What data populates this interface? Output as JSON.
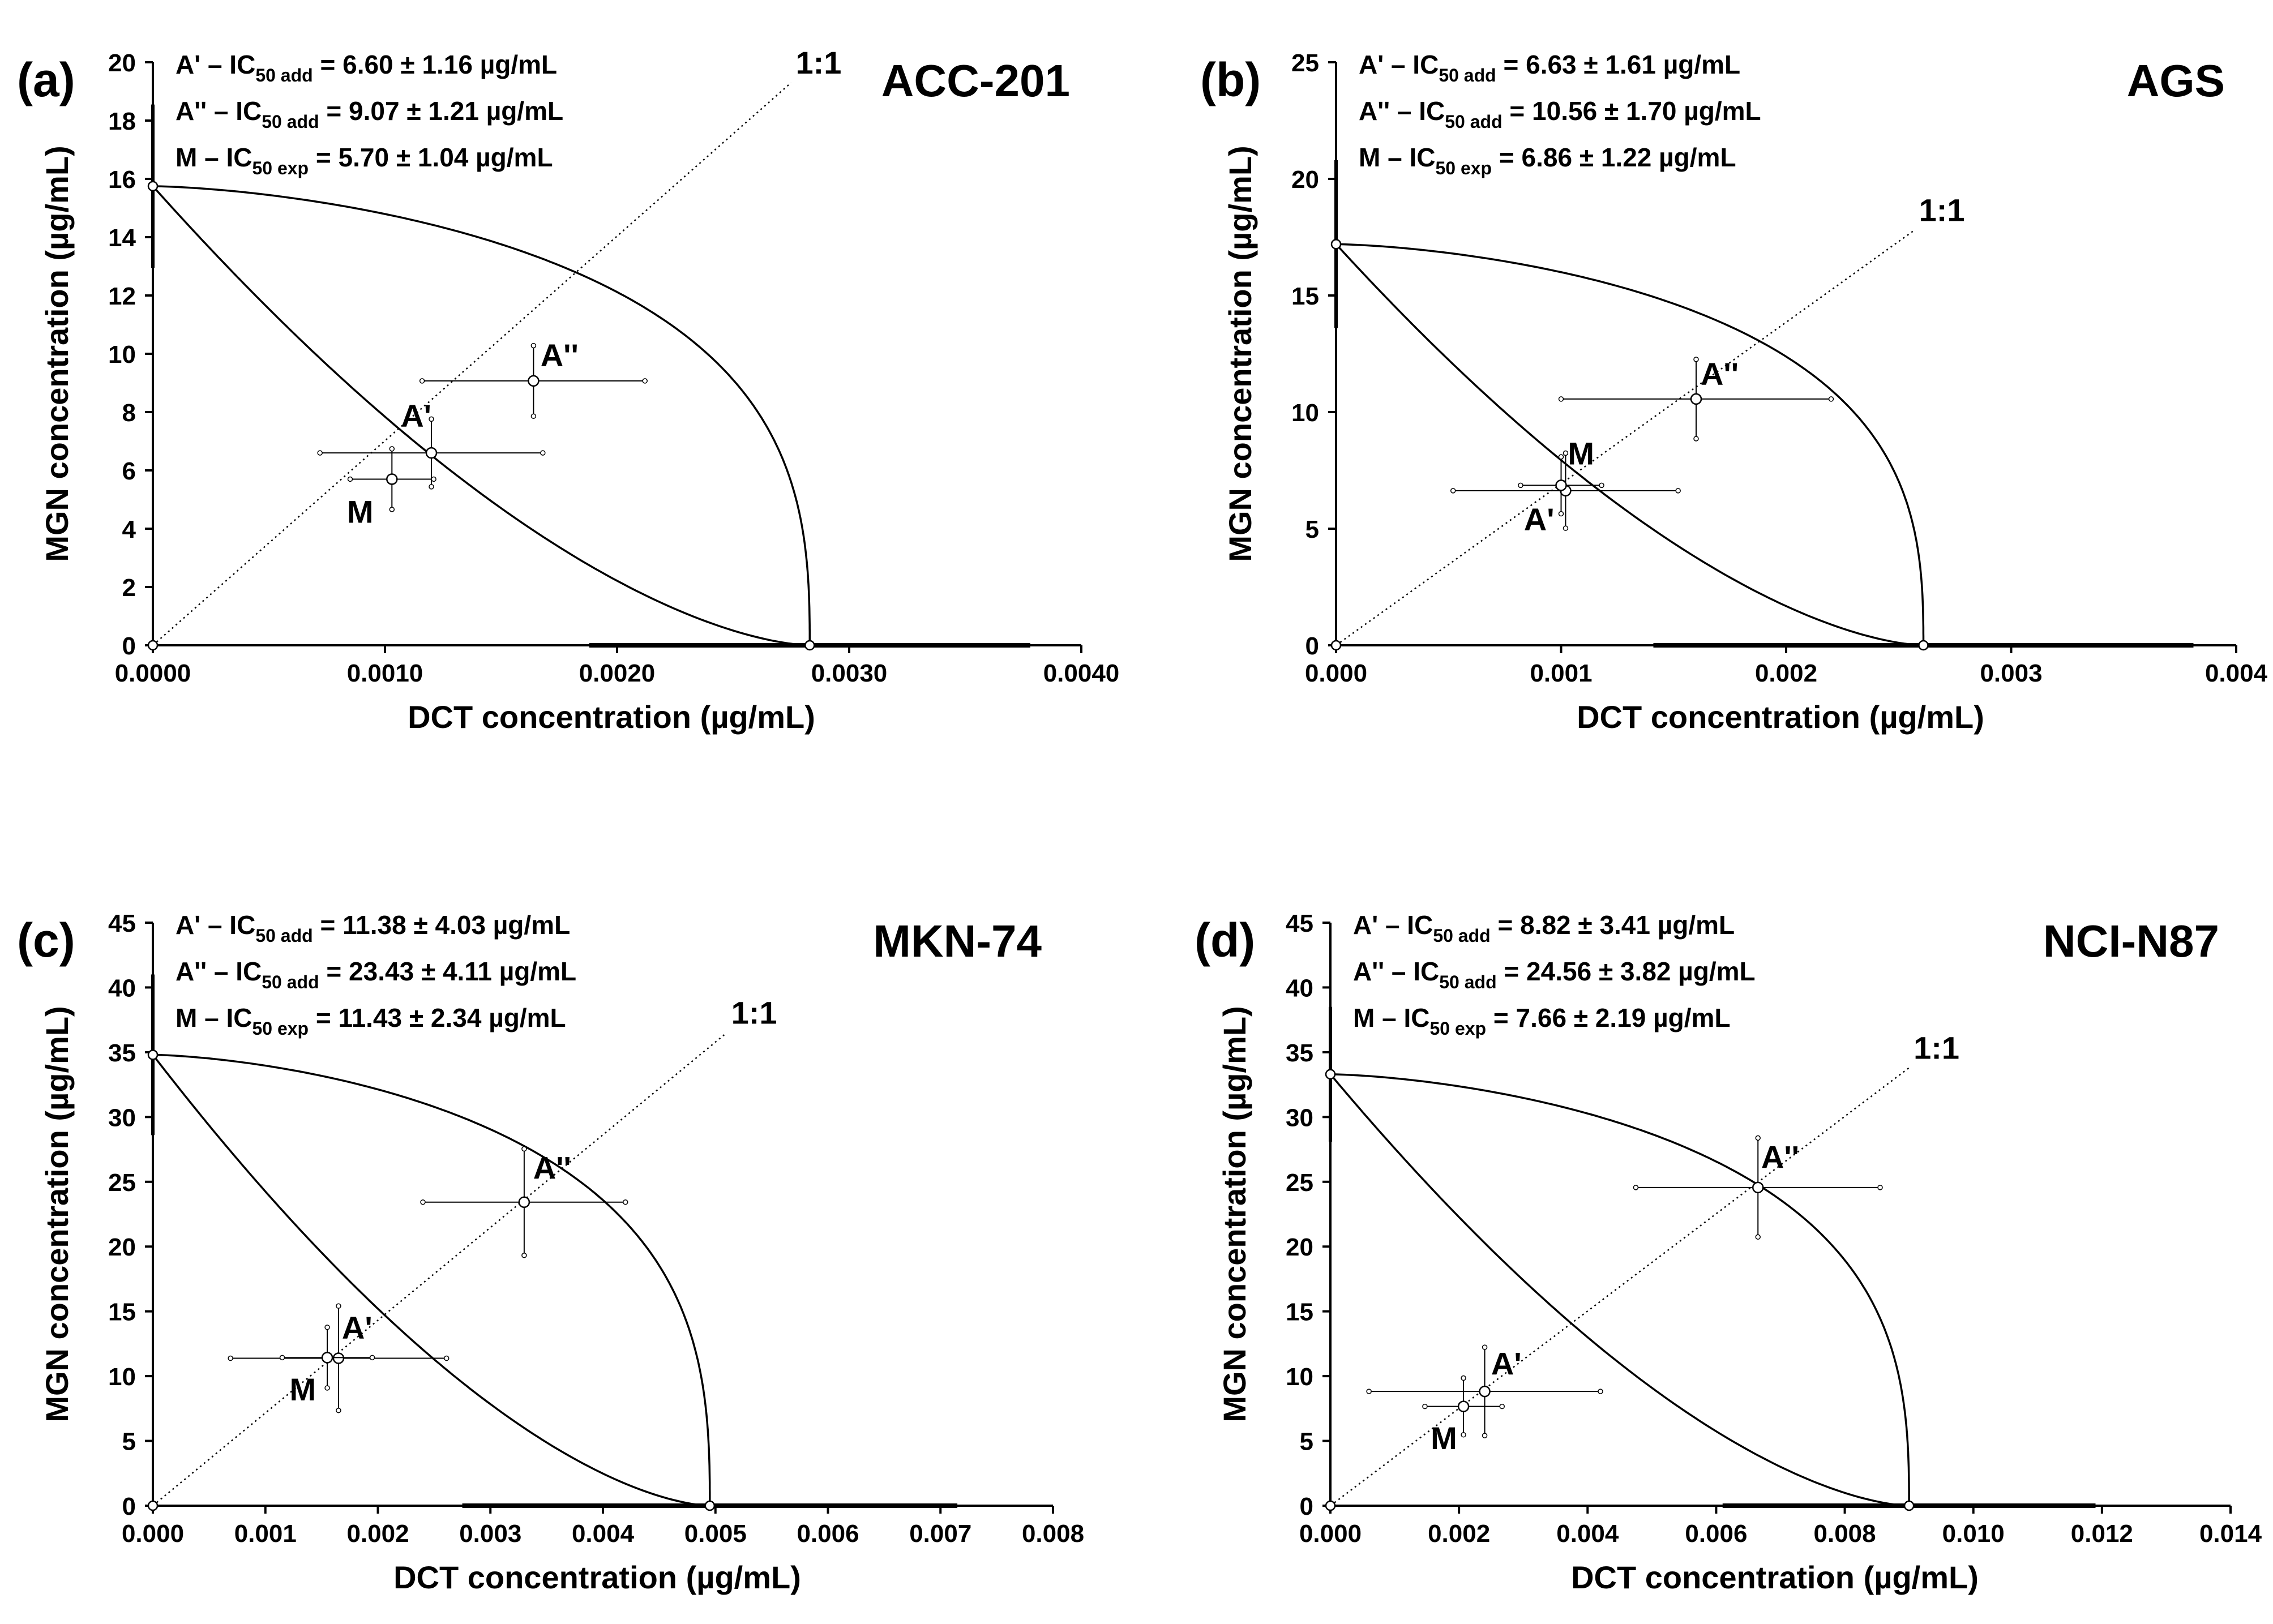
{
  "colors": {
    "line": "#000000",
    "background": "#ffffff",
    "marker_fill": "#ffffff"
  },
  "x_axis_label": "DCT concentration (µg/mL)",
  "y_axis_label": "MGN concentration (µg/mL)",
  "chart_data": [
    {
      "type": "scatter",
      "panel": "(a)",
      "title": "ACC-201",
      "xlabel": "DCT concentration (µg/mL)",
      "ylabel": "MGN concentration (µg/mL)",
      "xlim": [
        0,
        0.004
      ],
      "ylim": [
        0,
        20
      ],
      "x_ticks": [
        0,
        0.001,
        0.002,
        0.003,
        0.004
      ],
      "x_tick_labels": [
        "0.0000",
        "0.0010",
        "0.0020",
        "0.0030",
        "0.0040"
      ],
      "y_ticks": [
        0,
        2,
        4,
        6,
        8,
        10,
        12,
        14,
        16,
        18,
        20
      ],
      "y_tick_labels": [
        "0",
        "2",
        "4",
        "6",
        "8",
        "10",
        "12",
        "14",
        "16",
        "18",
        "20"
      ],
      "ic50_y": 15.75,
      "ic50_y_err": 2.8,
      "ic50_x": 0.00283,
      "ic50_x_err": 0.00095,
      "ratio_label": "1:1",
      "ratio_end": [
        0.00275,
        19.3
      ],
      "points": [
        {
          "label": "A'",
          "x": 0.0012,
          "y": 6.6,
          "xerr": 0.00048,
          "yerr": 1.16,
          "label_dx": 0.0,
          "label_dy": 0.9,
          "anchor": "end"
        },
        {
          "label": "A''",
          "x": 0.00164,
          "y": 9.07,
          "xerr": 0.00048,
          "yerr": 1.21,
          "label_dx": 3e-05,
          "label_dy": 0.5,
          "anchor": "start"
        },
        {
          "label": "M",
          "x": 0.00103,
          "y": 5.7,
          "xerr": 0.00018,
          "yerr": 1.04,
          "label_dx": -8e-05,
          "label_dy": -1.5,
          "anchor": "end"
        }
      ],
      "annotations": [
        {
          "prefix": "A' – IC",
          "sub": "50 add",
          "value": " = 6.60 ± 1.16 µg/mL"
        },
        {
          "prefix": "A'' – IC",
          "sub": "50 add",
          "value": " = 9.07 ± 1.21 µg/mL"
        },
        {
          "prefix": "M – IC",
          "sub": "50 exp",
          "value": " = 5.70 ± 1.04 µg/mL"
        }
      ]
    },
    {
      "type": "scatter",
      "panel": "(b)",
      "title": "AGS",
      "xlabel": "DCT concentration (µg/mL)",
      "ylabel": "MGN concentration (µg/mL)",
      "xlim": [
        0,
        0.004
      ],
      "ylim": [
        0,
        25
      ],
      "x_ticks": [
        0,
        0.001,
        0.002,
        0.003,
        0.004
      ],
      "x_tick_labels": [
        "0.000",
        "0.001",
        "0.002",
        "0.003",
        "0.004"
      ],
      "y_ticks": [
        0,
        5,
        10,
        15,
        20,
        25
      ],
      "y_tick_labels": [
        "0",
        "5",
        "10",
        "15",
        "20",
        "25"
      ],
      "ic50_y": 17.2,
      "ic50_y_err": 3.6,
      "ic50_x": 0.00261,
      "ic50_x_err": 0.0012,
      "ratio_label": "1:1",
      "ratio_end": [
        0.00257,
        17.8
      ],
      "points": [
        {
          "label": "A'",
          "x": 0.00102,
          "y": 6.63,
          "xerr": 0.0005,
          "yerr": 1.61,
          "label_dx": -5e-05,
          "label_dy": -1.7,
          "anchor": "end"
        },
        {
          "label": "A''",
          "x": 0.0016,
          "y": 10.56,
          "xerr": 0.0006,
          "yerr": 1.7,
          "label_dx": 2e-05,
          "label_dy": 0.6,
          "anchor": "start"
        },
        {
          "label": "M",
          "x": 0.001,
          "y": 6.86,
          "xerr": 0.00018,
          "yerr": 1.22,
          "label_dx": 3e-05,
          "label_dy": 0.9,
          "anchor": "start"
        }
      ],
      "annotations": [
        {
          "prefix": "A' – IC",
          "sub": "50 add",
          "value": " = 6.63 ± 1.61 µg/mL"
        },
        {
          "prefix": "A'' – IC",
          "sub": "50 add",
          "value": " = 10.56 ± 1.70 µg/mL"
        },
        {
          "prefix": "M – IC",
          "sub": "50 exp",
          "value": " = 6.86 ± 1.22 µg/mL"
        }
      ]
    },
    {
      "type": "scatter",
      "panel": "(c)",
      "title": "MKN-74",
      "xlabel": "DCT concentration (µg/mL)",
      "ylabel": "MGN concentration (µg/mL)",
      "xlim": [
        0,
        0.008
      ],
      "ylim": [
        0,
        45
      ],
      "x_ticks": [
        0,
        0.001,
        0.002,
        0.003,
        0.004,
        0.005,
        0.006,
        0.007,
        0.008
      ],
      "x_tick_labels": [
        "0.000",
        "0.001",
        "0.002",
        "0.003",
        "0.004",
        "0.005",
        "0.006",
        "0.007",
        "0.008"
      ],
      "y_ticks": [
        0,
        5,
        10,
        15,
        20,
        25,
        30,
        35,
        40,
        45
      ],
      "y_tick_labels": [
        "0",
        "5",
        "10",
        "15",
        "20",
        "25",
        "30",
        "35",
        "40",
        "45"
      ],
      "ic50_y": 34.8,
      "ic50_y_err": 6.2,
      "ic50_x": 0.00495,
      "ic50_x_err": 0.0022,
      "ratio_label": "1:1",
      "ratio_end": [
        0.0051,
        36.5
      ],
      "points": [
        {
          "label": "A'",
          "x": 0.00165,
          "y": 11.38,
          "xerr": 0.00096,
          "yerr": 4.03,
          "label_dx": 3e-05,
          "label_dy": 1.5,
          "anchor": "start"
        },
        {
          "label": "A''",
          "x": 0.0033,
          "y": 23.43,
          "xerr": 0.0009,
          "yerr": 4.11,
          "label_dx": 8e-05,
          "label_dy": 1.8,
          "anchor": "start"
        },
        {
          "label": "M",
          "x": 0.00155,
          "y": 11.43,
          "xerr": 0.0004,
          "yerr": 2.34,
          "label_dx": -0.0001,
          "label_dy": -3.3,
          "anchor": "end"
        }
      ],
      "annotations": [
        {
          "prefix": "A' – IC",
          "sub": "50 add",
          "value": " = 11.38 ± 4.03 µg/mL"
        },
        {
          "prefix": "A'' – IC",
          "sub": "50 add",
          "value": " = 23.43 ± 4.11 µg/mL"
        },
        {
          "prefix": "M – IC",
          "sub": "50 exp",
          "value": " = 11.43 ± 2.34 µg/mL"
        }
      ]
    },
    {
      "type": "scatter",
      "panel": "(d)",
      "title": "NCI-N87",
      "xlabel": "DCT concentration (µg/mL)",
      "ylabel": "MGN concentration (µg/mL)",
      "xlim": [
        0,
        0.014
      ],
      "ylim": [
        0,
        45
      ],
      "x_ticks": [
        0,
        0.002,
        0.004,
        0.006,
        0.008,
        0.01,
        0.012,
        0.014
      ],
      "x_tick_labels": [
        "0.000",
        "0.002",
        "0.004",
        "0.006",
        "0.008",
        "0.010",
        "0.012",
        "0.014"
      ],
      "y_ticks": [
        0,
        5,
        10,
        15,
        20,
        25,
        30,
        35,
        40,
        45
      ],
      "y_tick_labels": [
        "0",
        "5",
        "10",
        "15",
        "20",
        "25",
        "30",
        "35",
        "40",
        "45"
      ],
      "ic50_y": 33.3,
      "ic50_y_err": 5.2,
      "ic50_x": 0.009,
      "ic50_x_err": 0.0029,
      "ratio_label": "1:1",
      "ratio_end": [
        0.009,
        33.8
      ],
      "points": [
        {
          "label": "A'",
          "x": 0.0024,
          "y": 8.82,
          "xerr": 0.0018,
          "yerr": 3.41,
          "label_dx": 0.0001,
          "label_dy": 1.3,
          "anchor": "start"
        },
        {
          "label": "A''",
          "x": 0.00665,
          "y": 24.56,
          "xerr": 0.0019,
          "yerr": 3.82,
          "label_dx": 5e-05,
          "label_dy": 1.5,
          "anchor": "start"
        },
        {
          "label": "M",
          "x": 0.00207,
          "y": 7.66,
          "xerr": 0.0006,
          "yerr": 2.19,
          "label_dx": -0.0001,
          "label_dy": -3.3,
          "anchor": "end"
        }
      ],
      "annotations": [
        {
          "prefix": "A' – IC",
          "sub": "50 add",
          "value": " = 8.82 ± 3.41 µg/mL"
        },
        {
          "prefix": "A'' – IC",
          "sub": "50 add",
          "value": " = 24.56 ± 3.82 µg/mL"
        },
        {
          "prefix": "M – IC",
          "sub": "50 exp",
          "value": " = 7.66 ± 2.19 µg/mL"
        }
      ]
    }
  ]
}
